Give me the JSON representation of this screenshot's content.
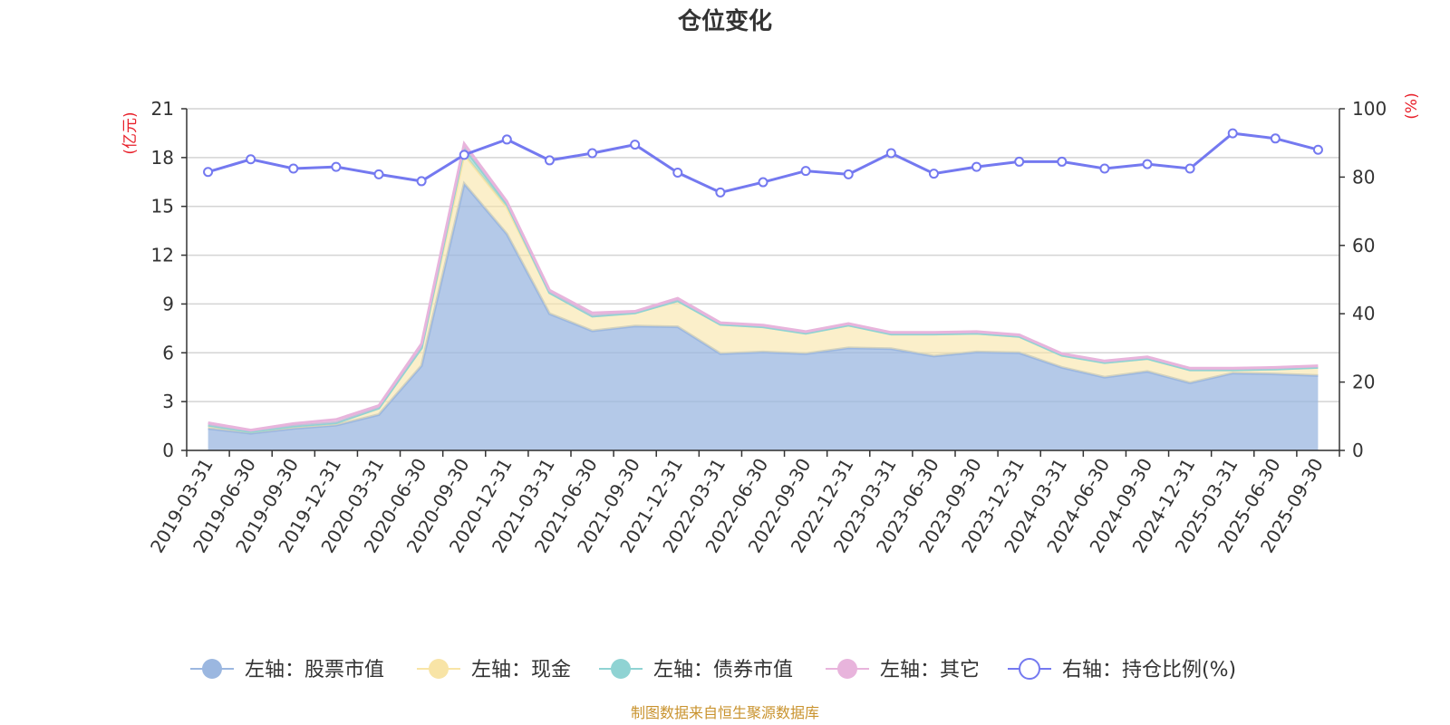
{
  "chart_data": {
    "type": "area",
    "title": "仓位变化",
    "source_note": "制图数据来自恒生聚源数据库",
    "left_axis": {
      "unit": "(亿元)",
      "ylim": [
        0,
        21
      ],
      "ticks": [
        0,
        3,
        6,
        9,
        12,
        15,
        18,
        21
      ]
    },
    "right_axis": {
      "unit": "(%)",
      "ylim": [
        0,
        100
      ],
      "ticks": [
        0,
        20,
        40,
        60,
        80,
        100
      ]
    },
    "categories": [
      "2019-03-31",
      "2019-06-30",
      "2019-09-30",
      "2019-12-31",
      "2020-03-31",
      "2020-06-30",
      "2020-09-30",
      "2020-12-31",
      "2021-03-31",
      "2021-06-30",
      "2021-09-30",
      "2021-12-31",
      "2022-03-31",
      "2022-06-30",
      "2022-09-30",
      "2022-12-31",
      "2023-03-31",
      "2023-06-30",
      "2023-09-30",
      "2023-12-31",
      "2024-03-31",
      "2024-06-30",
      "2024-09-30",
      "2024-12-31",
      "2025-03-31",
      "2025-06-30",
      "2025-09-30"
    ],
    "series": [
      {
        "name": "左轴：股票市值",
        "axis": "left",
        "kind": "stacked-area",
        "color": "#9bb7e0",
        "values": [
          1.35,
          1.05,
          1.35,
          1.55,
          2.2,
          5.2,
          16.4,
          13.3,
          8.4,
          7.35,
          7.65,
          7.6,
          5.95,
          6.05,
          5.95,
          6.3,
          6.25,
          5.8,
          6.05,
          6.0,
          5.1,
          4.5,
          4.85,
          4.15,
          4.75,
          4.7,
          4.6
        ]
      },
      {
        "name": "左轴：现金",
        "axis": "left",
        "kind": "stacked-area",
        "color": "#f8e4a6",
        "values": [
          0.2,
          0.1,
          0.15,
          0.15,
          0.4,
          1.1,
          1.8,
          1.65,
          1.3,
          0.9,
          0.8,
          1.6,
          1.8,
          1.55,
          1.25,
          1.4,
          0.9,
          1.35,
          1.15,
          1.0,
          0.75,
          0.9,
          0.8,
          0.8,
          0.2,
          0.3,
          0.5
        ]
      },
      {
        "name": "左轴：债券市值",
        "axis": "left",
        "kind": "stacked-area",
        "color": "#8fd3d3",
        "values": [
          0,
          0,
          0,
          0,
          0,
          0,
          0.4,
          0.2,
          0,
          0,
          0,
          0,
          0,
          0,
          0,
          0,
          0,
          0,
          0,
          0,
          0,
          0,
          0,
          0,
          0,
          0,
          0
        ]
      },
      {
        "name": "左轴：其它",
        "axis": "left",
        "kind": "stacked-area",
        "color": "#e8b4dc",
        "values": [
          0.15,
          0.1,
          0.15,
          0.2,
          0.15,
          0.25,
          0.25,
          0.15,
          0.15,
          0.2,
          0.1,
          0.15,
          0.1,
          0.1,
          0.1,
          0.1,
          0.1,
          0.1,
          0.1,
          0.1,
          0.1,
          0.1,
          0.1,
          0.1,
          0.1,
          0.1,
          0.1
        ]
      },
      {
        "name": "右轴：持仓比例(%)",
        "axis": "right",
        "kind": "line",
        "color": "#7479f0",
        "values": [
          81.5,
          85.2,
          82.5,
          83.0,
          80.8,
          78.8,
          86.5,
          91.0,
          84.9,
          87.0,
          89.5,
          81.3,
          75.5,
          78.5,
          81.8,
          80.8,
          87.0,
          81.0,
          83.0,
          84.5,
          84.5,
          82.5,
          83.8,
          82.5,
          92.8,
          91.3,
          88.0
        ]
      }
    ]
  }
}
